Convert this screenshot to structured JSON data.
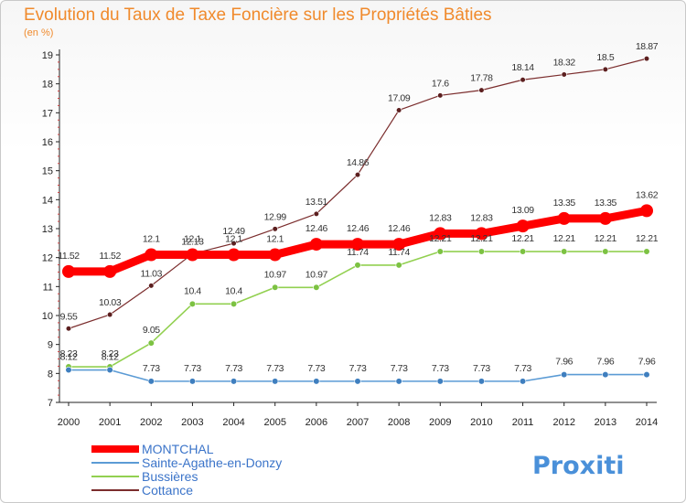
{
  "chart_data": {
    "type": "line",
    "title": "Evolution du Taux de Taxe Foncière sur les Propriétés Bâties",
    "subtitle": "(en %)",
    "x": [
      "2000",
      "2001",
      "2002",
      "2003",
      "2004",
      "2005",
      "2006",
      "2007",
      "2008",
      "2009",
      "2010",
      "2011",
      "2012",
      "2013",
      "2014"
    ],
    "ylim": [
      7,
      19
    ],
    "yticks": [
      "7",
      "8",
      "9",
      "10",
      "11",
      "12",
      "13",
      "14",
      "15",
      "16",
      "17",
      "18",
      "19"
    ],
    "grid": false,
    "legend_position": "bottom-left",
    "series": [
      {
        "name": "MONTCHAL",
        "color": "#ff0000",
        "values": [
          11.52,
          11.52,
          12.1,
          12.1,
          12.1,
          12.1,
          12.46,
          12.46,
          12.46,
          12.83,
          12.83,
          13.09,
          13.35,
          13.35,
          13.62
        ],
        "labels": [
          "11.52",
          "11.52",
          "12.1",
          "12.1",
          "12.1",
          "12.1",
          "12.46",
          "12.46",
          "12.46",
          "12.83",
          "12.83",
          "13.09",
          "13.35",
          "13.35",
          "13.62"
        ]
      },
      {
        "name": "Sainte-Agathe-en-Donzy",
        "color": "#5b9bd5",
        "values": [
          8.12,
          8.12,
          7.73,
          7.73,
          7.73,
          7.73,
          7.73,
          7.73,
          7.73,
          7.73,
          7.73,
          7.73,
          7.96,
          7.96,
          7.96
        ],
        "labels": [
          "8.12",
          "8.12",
          "7.73",
          "7.73",
          "7.73",
          "7.73",
          "7.73",
          "7.73",
          "7.73",
          "7.73",
          "7.73",
          "7.73",
          "7.96",
          "7.96",
          "7.96"
        ]
      },
      {
        "name": "Bussières",
        "color": "#92d050",
        "values": [
          8.23,
          8.23,
          9.05,
          10.4,
          10.4,
          10.97,
          10.97,
          11.74,
          11.74,
          12.21,
          12.21,
          12.21,
          12.21,
          12.21,
          12.21
        ],
        "labels": [
          "8.23",
          "8.23",
          "9.05",
          "10.4",
          "10.4",
          "10.97",
          "10.97",
          "11.74",
          "11.74",
          "12.21",
          "12.21",
          "12.21",
          "12.21",
          "12.21",
          "12.21"
        ]
      },
      {
        "name": "Cottance",
        "color": "#7b2d2d",
        "values": [
          9.55,
          10.03,
          11.03,
          12.13,
          12.49,
          12.99,
          13.51,
          14.86,
          17.09,
          17.6,
          17.78,
          18.14,
          18.32,
          18.5,
          18.87
        ],
        "labels": [
          "9.55",
          "10.03",
          "11.03",
          "12.13",
          "12.49",
          "12.99",
          "13.51",
          "14.86",
          "17.09",
          "17.6",
          "17.78",
          "18.14",
          "18.32",
          "18.5",
          "18.87"
        ]
      }
    ]
  },
  "logo": {
    "text": "Proxiti"
  }
}
